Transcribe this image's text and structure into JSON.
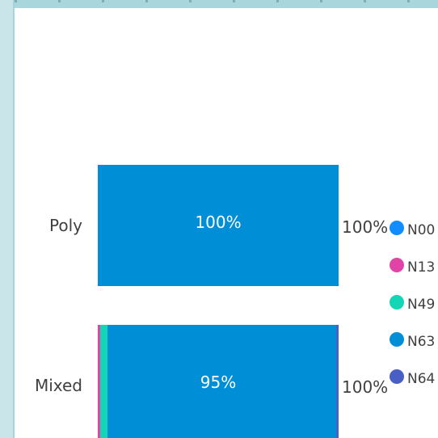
{
  "chart_data": {
    "type": "bar",
    "orientation": "horizontal",
    "stacked": "percent",
    "categories": [
      "Poly",
      "Mixed"
    ],
    "series": [
      {
        "name": "N00",
        "color": "#118dff",
        "values": [
          0,
          0
        ]
      },
      {
        "name": "N13",
        "color": "#e044a7",
        "values": [
          0,
          1
        ]
      },
      {
        "name": "N49",
        "color": "#12d6b5",
        "values": [
          0,
          3
        ]
      },
      {
        "name": "N63",
        "color": "#008fd6",
        "values": [
          100,
          95
        ]
      },
      {
        "name": "N64",
        "color": "#4a5fc6",
        "values": [
          0,
          1
        ]
      }
    ],
    "bar_labels": [
      "100%",
      "95%"
    ],
    "total_labels": [
      "100%",
      "100%"
    ],
    "legend": {
      "position": "right"
    },
    "xlim": [
      0,
      100
    ],
    "grid": false,
    "title": "",
    "xlabel": "",
    "ylabel": ""
  }
}
